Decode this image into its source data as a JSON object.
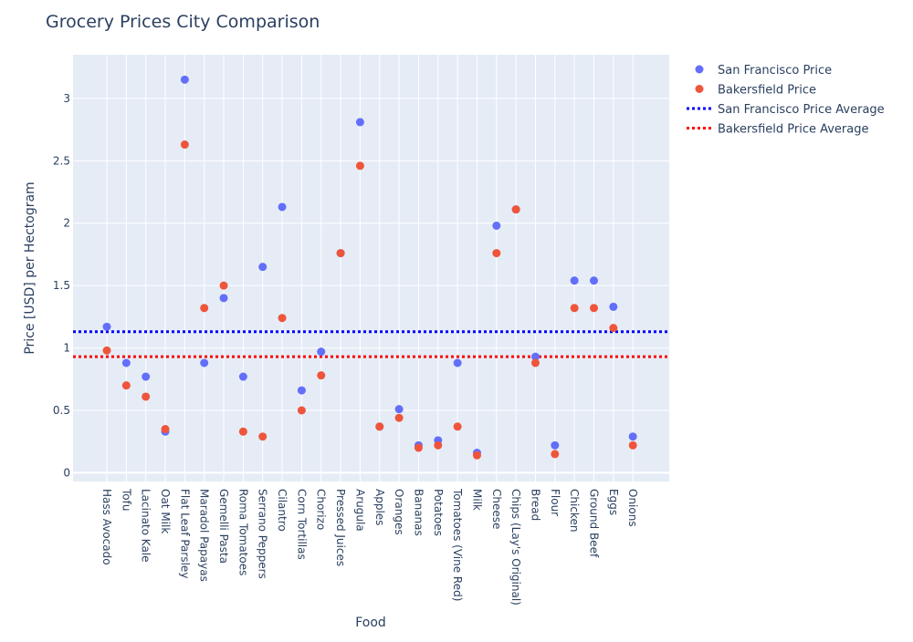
{
  "chart_data": {
    "type": "scatter",
    "title": "Grocery Prices City Comparison",
    "xlabel": "Food",
    "ylabel": "Price [USD] per Hectogram",
    "ylim": [
      -0.07,
      3.35
    ],
    "yticks": [
      0,
      0.5,
      1,
      1.5,
      2,
      2.5,
      3
    ],
    "grid": true,
    "legend_position": "top-right",
    "categories": [
      "Hass Avocado",
      "Tofu",
      "Lacinato Kale",
      "Oat Milk",
      "Flat Leaf Parsley",
      "Maradol Papayas",
      "Gemelli Pasta",
      "Roma Tomatoes",
      "Serrano Peppers",
      "Cilantro",
      "Corn Tortillas",
      "Chorizo",
      "Pressed Juices",
      "Arugula",
      "Apples",
      "Oranges",
      "Bananas",
      "Potatoes",
      "Tomatoes (Vine Red)",
      "Milk",
      "Cheese",
      "Chips (Lay's Original)",
      "Bread",
      "Flour",
      "Chicken",
      "Ground Beef",
      "Eggs",
      "Onions"
    ],
    "series": [
      {
        "name": "San Francisco Price",
        "color": "#636efa",
        "values": [
          1.17,
          0.88,
          0.77,
          0.33,
          3.15,
          0.88,
          1.4,
          0.77,
          1.65,
          2.13,
          0.66,
          0.97,
          1.76,
          2.81,
          0.37,
          0.51,
          0.22,
          0.26,
          0.88,
          0.16,
          1.98,
          2.11,
          0.93,
          0.22,
          1.54,
          1.54,
          1.33,
          0.29
        ]
      },
      {
        "name": "Bakersfield Price",
        "color": "#ef553b",
        "values": [
          0.98,
          0.7,
          0.61,
          0.35,
          2.63,
          1.32,
          1.5,
          0.33,
          0.29,
          1.24,
          0.5,
          0.78,
          1.76,
          2.46,
          0.37,
          0.44,
          0.2,
          0.22,
          0.37,
          0.14,
          1.76,
          2.11,
          0.88,
          0.15,
          1.32,
          1.32,
          1.16,
          0.22
        ]
      }
    ],
    "reference_lines": [
      {
        "name": "San Francisco Price Average",
        "value": 1.13,
        "color": "#0000ff",
        "style": "dotted"
      },
      {
        "name": "Bakersfield Price Average",
        "value": 0.93,
        "color": "#ff0000",
        "style": "dotted"
      }
    ],
    "colors": {
      "plot_background": "#e5ecf6",
      "grid": "#ffffff",
      "text": "#2a3f5f"
    }
  }
}
